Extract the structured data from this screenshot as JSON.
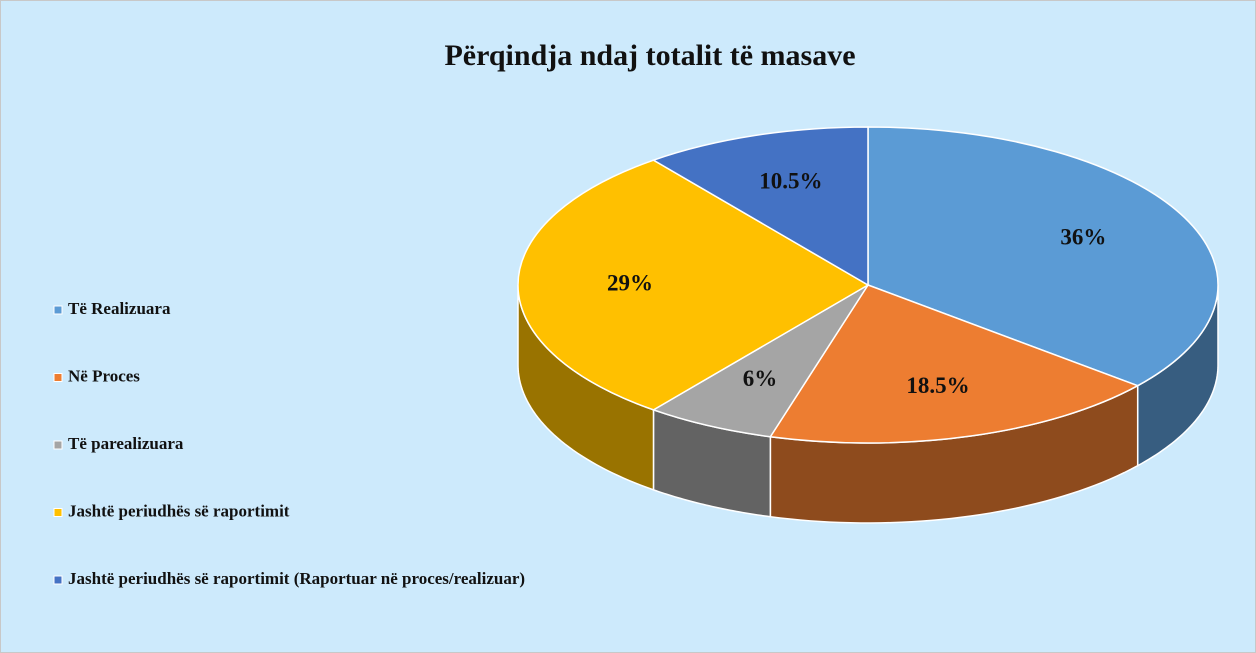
{
  "chart_data": {
    "type": "pie3d",
    "title": "Përqindja ndaj totalit të masave",
    "categories": [
      "Të Realizuara",
      "Në Proces",
      "Të parealizuara",
      "Jashtë periudhës së raportimit",
      "Jashtë periudhës së raportimit (Raportuar në proces/realizuar)"
    ],
    "values": [
      36,
      18.5,
      6,
      29,
      10.5
    ],
    "value_labels": [
      "36%",
      "18.5%",
      "6%",
      "29%",
      "10.5%"
    ],
    "colors": [
      "#5b9bd5",
      "#ed7d31",
      "#a5a5a5",
      "#ffc000",
      "#4472c4"
    ],
    "legend": "left"
  }
}
